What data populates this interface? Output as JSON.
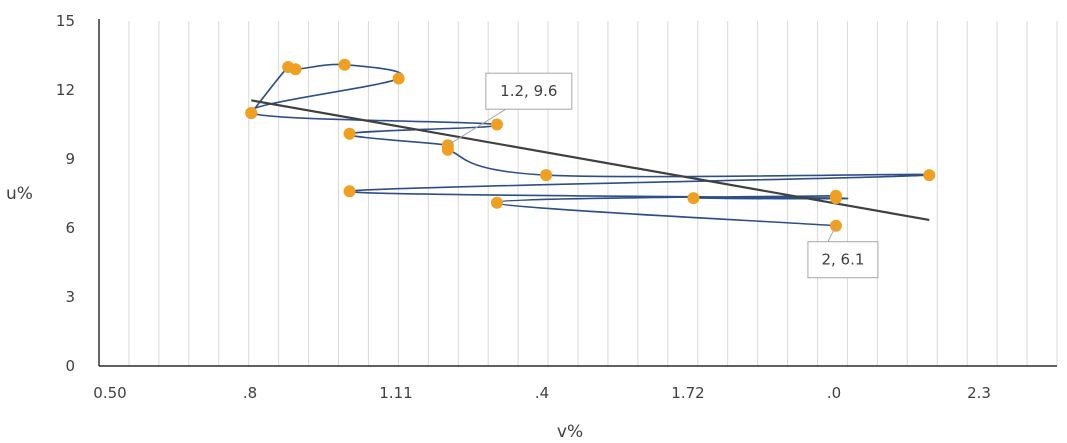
{
  "chart_data": {
    "type": "scatter",
    "title": "",
    "xlabel": "v%",
    "ylabel": "u%",
    "x_tick_labels": [
      "0.50",
      ".8",
      "1.11",
      ".4",
      "1.72",
      ".0",
      "2.3"
    ],
    "y_tick_labels": [
      "0",
      "3",
      "6",
      "9",
      "12",
      "15"
    ],
    "xlim": [
      0.5,
      2.45
    ],
    "ylim": [
      0,
      15
    ],
    "grid": "vertical-minor",
    "colors": {
      "line": "#2e4f86",
      "marker": "#f0a020",
      "trendline": "#404040",
      "axis": "#000000",
      "grid": "#d9d9d9"
    },
    "series": [
      {
        "x": [
          0.81,
          0.885,
          0.9,
          1.0,
          1.11,
          0.81,
          1.31,
          1.01,
          1.21,
          1.21,
          1.41,
          2.19,
          1.01,
          2.0,
          1.71,
          2.0,
          1.31,
          2.0
        ],
        "y": [
          11.0,
          13.0,
          12.9,
          13.1,
          12.5,
          11.0,
          10.5,
          10.1,
          9.6,
          9.4,
          8.3,
          8.3,
          7.6,
          7.3,
          7.3,
          7.4,
          7.1,
          6.1
        ]
      }
    ],
    "trendline": {
      "x": [
        0.81,
        2.19
      ],
      "y": [
        11.55,
        6.35
      ]
    },
    "annotations": [
      {
        "text": "1.2,  9.6",
        "x": 1.21,
        "y": 9.6
      },
      {
        "text": "2, 6.1",
        "x": 2.0,
        "y": 6.1
      }
    ]
  }
}
